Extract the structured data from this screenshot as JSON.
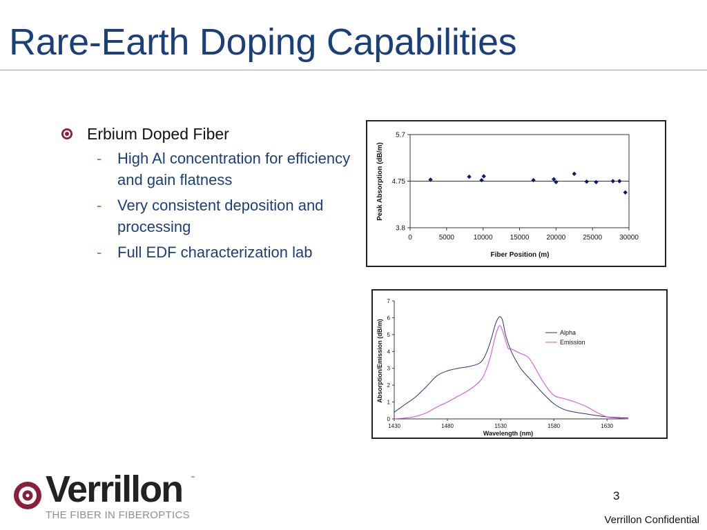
{
  "slide": {
    "title": "Rare-Earth Doping Capabilities",
    "page_number": "3",
    "footer_text": "Verrillon Confidential"
  },
  "logo": {
    "wordmark": "Verrillon",
    "trademark": "™",
    "tagline": "THE FIBER IN FIBEROPTICS",
    "icon": "verrillon-swirl-icon"
  },
  "bullets": {
    "main": "Erbium Doped Fiber",
    "sub": [
      "High Al concentration for efficiency and gain flatness",
      "Very consistent deposition and processing",
      "Full EDF characterization lab"
    ]
  },
  "colors": {
    "title": "#1b3f7a",
    "subbullet": "#1b3f7a",
    "dash": "#c8691c",
    "bullet_icon": "#8a1f3a",
    "marker": "#0a1a6e",
    "alpha": "#2a2f7a",
    "emission": "#e040e0"
  },
  "chart_data": [
    {
      "type": "scatter",
      "title": "",
      "xlabel": "Fiber Position (m)",
      "ylabel": "Peak Absorption (dB/m)",
      "xlim": [
        0,
        30000
      ],
      "ylim": [
        3.8,
        5.7
      ],
      "xticks": [
        "0",
        "5000",
        "10000",
        "15000",
        "20000",
        "25000",
        "30000"
      ],
      "yticks": [
        "3.8",
        "4.75",
        "5.7"
      ],
      "reference_line": 4.75,
      "grid": false,
      "series": [
        {
          "points": [
            [
              2800,
              4.78
            ],
            [
              8100,
              4.84
            ],
            [
              9800,
              4.77
            ],
            [
              10100,
              4.85
            ],
            [
              16900,
              4.77
            ],
            [
              19700,
              4.79
            ],
            [
              20000,
              4.73
            ],
            [
              22500,
              4.9
            ],
            [
              24200,
              4.74
            ],
            [
              25500,
              4.73
            ],
            [
              27800,
              4.75
            ],
            [
              28700,
              4.75
            ],
            [
              29500,
              4.52
            ]
          ]
        }
      ]
    },
    {
      "type": "line",
      "title": "",
      "xlabel": "Wavelength (nm)",
      "ylabel": "Absorption/Emission (dB/m)",
      "xlim": [
        1430,
        1650
      ],
      "ylim": [
        0,
        7
      ],
      "xticks": [
        "1430",
        "1480",
        "1530",
        "1580",
        "1630"
      ],
      "yticks": [
        "0",
        "1",
        "2",
        "3",
        "4",
        "5",
        "6",
        "7"
      ],
      "legend_position": "right",
      "grid": false,
      "series": [
        {
          "name": "Alpha",
          "x": [
            1430,
            1440,
            1450,
            1460,
            1470,
            1480,
            1490,
            1500,
            1510,
            1515,
            1520,
            1525,
            1528,
            1530,
            1532,
            1535,
            1540,
            1545,
            1550,
            1560,
            1570,
            1580,
            1590,
            1600,
            1610,
            1620,
            1630,
            1640,
            1650
          ],
          "values": [
            0.4,
            0.85,
            1.3,
            1.9,
            2.55,
            2.85,
            3.0,
            3.1,
            3.3,
            3.7,
            4.5,
            5.6,
            6.0,
            6.05,
            5.8,
            4.9,
            4.0,
            3.4,
            2.9,
            2.2,
            1.5,
            0.9,
            0.55,
            0.4,
            0.3,
            0.2,
            0.12,
            0.08,
            0.05
          ]
        },
        {
          "name": "Emission",
          "x": [
            1430,
            1440,
            1450,
            1460,
            1470,
            1480,
            1490,
            1500,
            1510,
            1515,
            1520,
            1525,
            1528,
            1530,
            1533,
            1537,
            1540,
            1548,
            1555,
            1560,
            1570,
            1580,
            1590,
            1600,
            1610,
            1620,
            1630,
            1640,
            1650
          ],
          "values": [
            0.0,
            0.05,
            0.15,
            0.35,
            0.7,
            1.0,
            1.35,
            1.7,
            2.2,
            2.7,
            3.6,
            4.9,
            5.45,
            5.5,
            5.0,
            4.2,
            4.15,
            3.9,
            3.7,
            3.3,
            2.2,
            1.4,
            1.2,
            1.0,
            0.75,
            0.4,
            0.12,
            0.05,
            0.0
          ]
        }
      ]
    }
  ]
}
